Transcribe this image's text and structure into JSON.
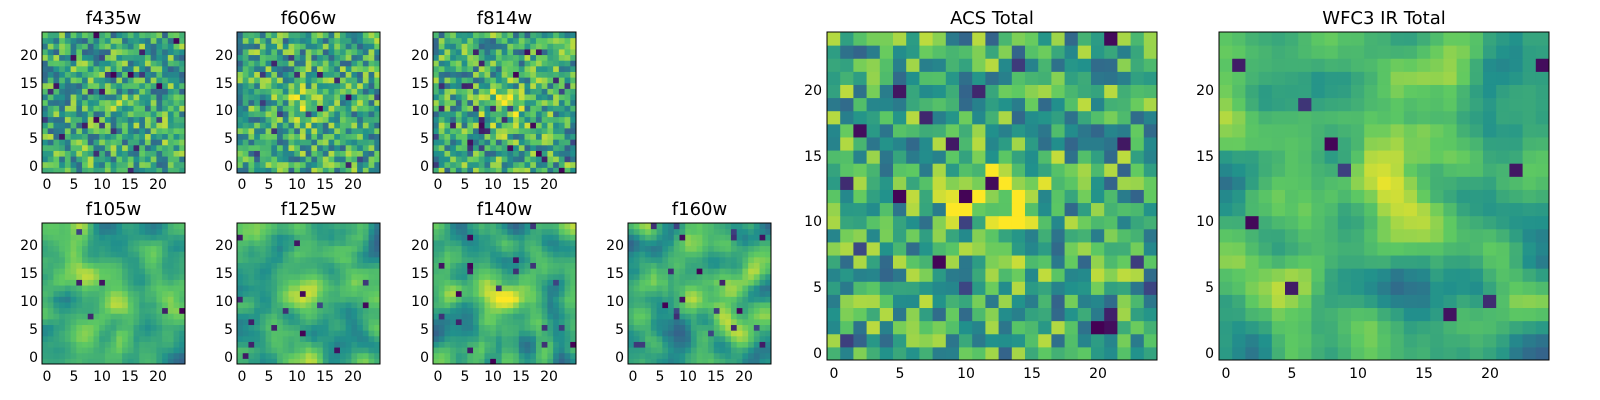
{
  "colormap": [
    "#440154",
    "#3b528b",
    "#21918c",
    "#5ec962",
    "#fde725"
  ],
  "chart_data": [
    {
      "type": "heatmap",
      "title": "f435w",
      "grid_size": 25,
      "x_ticks": [
        "0",
        "5",
        "10",
        "15",
        "20"
      ],
      "y_ticks": [
        "0",
        "5",
        "10",
        "15",
        "20"
      ],
      "xlim": [
        0,
        24
      ],
      "ylim": [
        0,
        24
      ],
      "pattern": "noise",
      "seed": 11,
      "peak": [
        12,
        12
      ],
      "peak_amp": 0.05,
      "dark_prob": 0.04
    },
    {
      "type": "heatmap",
      "title": "f606w",
      "grid_size": 25,
      "x_ticks": [
        "0",
        "5",
        "10",
        "15",
        "20"
      ],
      "y_ticks": [
        "0",
        "5",
        "10",
        "15",
        "20"
      ],
      "xlim": [
        0,
        24
      ],
      "ylim": [
        0,
        24
      ],
      "pattern": "noise",
      "seed": 23,
      "peak": [
        12,
        12
      ],
      "peak_amp": 0.2,
      "dark_prob": 0.03
    },
    {
      "type": "heatmap",
      "title": "f814w",
      "grid_size": 25,
      "x_ticks": [
        "0",
        "5",
        "10",
        "15",
        "20"
      ],
      "y_ticks": [
        "0",
        "5",
        "10",
        "15",
        "20"
      ],
      "xlim": [
        0,
        24
      ],
      "ylim": [
        0,
        24
      ],
      "pattern": "noise",
      "seed": 37,
      "peak": [
        12,
        11
      ],
      "peak_amp": 0.25,
      "dark_prob": 0.05
    },
    {
      "type": "heatmap",
      "title": "f105w",
      "grid_size": 25,
      "x_ticks": [
        "0",
        "5",
        "10",
        "15",
        "20"
      ],
      "y_ticks": [
        "0",
        "5",
        "10",
        "15",
        "20"
      ],
      "xlim": [
        0,
        24
      ],
      "ylim": [
        0,
        24
      ],
      "pattern": "smooth",
      "seed": 41,
      "peak": [
        13,
        11
      ],
      "peak_amp": 0.25,
      "dark_prob": 0.015
    },
    {
      "type": "heatmap",
      "title": "f125w",
      "grid_size": 25,
      "x_ticks": [
        "0",
        "5",
        "10",
        "15",
        "20"
      ],
      "y_ticks": [
        "0",
        "5",
        "10",
        "15",
        "20"
      ],
      "xlim": [
        0,
        24
      ],
      "ylim": [
        0,
        24
      ],
      "pattern": "smooth",
      "seed": 53,
      "peak": [
        12,
        12
      ],
      "peak_amp": 0.2,
      "dark_prob": 0.015
    },
    {
      "type": "heatmap",
      "title": "f140w",
      "grid_size": 25,
      "x_ticks": [
        "0",
        "5",
        "10",
        "15",
        "20"
      ],
      "y_ticks": [
        "0",
        "5",
        "10",
        "15",
        "20"
      ],
      "xlim": [
        0,
        24
      ],
      "ylim": [
        0,
        24
      ],
      "pattern": "smooth",
      "seed": 67,
      "peak": [
        12,
        12
      ],
      "peak_amp": 0.25,
      "dark_prob": 0.02
    },
    {
      "type": "heatmap",
      "title": "f160w",
      "grid_size": 25,
      "x_ticks": [
        "0",
        "5",
        "10",
        "15",
        "20"
      ],
      "y_ticks": [
        "0",
        "5",
        "10",
        "15",
        "20"
      ],
      "xlim": [
        0,
        24
      ],
      "ylim": [
        0,
        24
      ],
      "pattern": "smooth",
      "seed": 79,
      "peak": [
        13,
        12
      ],
      "peak_amp": 0.25,
      "dark_prob": 0.03
    },
    {
      "type": "heatmap",
      "title": "ACS Total",
      "grid_size": 25,
      "x_ticks": [
        "0",
        "5",
        "10",
        "15",
        "20"
      ],
      "y_ticks": [
        "0",
        "5",
        "10",
        "15",
        "20"
      ],
      "xlim": [
        0,
        24
      ],
      "ylim": [
        0,
        24
      ],
      "pattern": "noise",
      "seed": 97,
      "peak": [
        12,
        12
      ],
      "peak_amp": 0.35,
      "dark_prob": 0.04
    },
    {
      "type": "heatmap",
      "title": "WFC3 IR Total",
      "grid_size": 25,
      "x_ticks": [
        "0",
        "5",
        "10",
        "15",
        "20"
      ],
      "y_ticks": [
        "0",
        "5",
        "10",
        "15",
        "20"
      ],
      "xlim": [
        0,
        24
      ],
      "ylim": [
        0,
        24
      ],
      "pattern": "smooth",
      "seed": 131,
      "peak": [
        12,
        12
      ],
      "peak_amp": 0.35,
      "dark_prob": 0.02
    }
  ]
}
